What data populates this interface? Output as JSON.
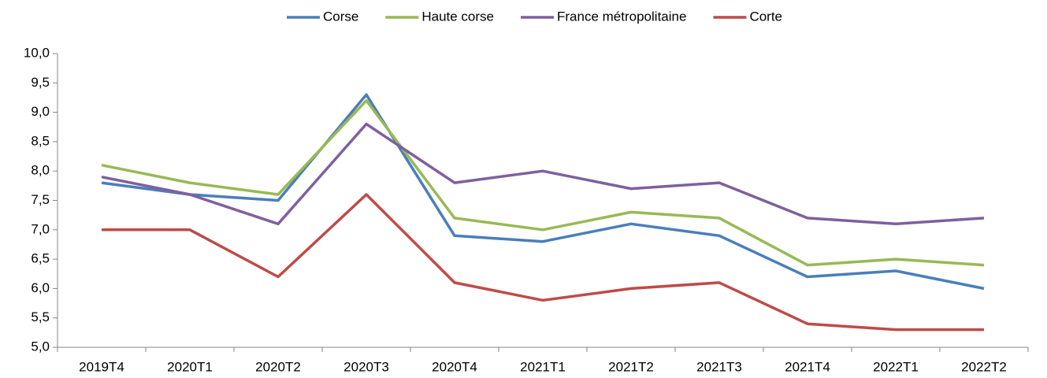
{
  "chart_data": {
    "type": "line",
    "categories": [
      "2019T4",
      "2020T1",
      "2020T2",
      "2020T3",
      "2020T4",
      "2021T1",
      "2021T2",
      "2021T3",
      "2021T4",
      "2022T1",
      "2022T2"
    ],
    "series": [
      {
        "name": "Corse",
        "color": "#4a7ebb",
        "values": [
          7.8,
          7.6,
          7.5,
          9.3,
          6.9,
          6.8,
          7.1,
          6.9,
          6.2,
          6.3,
          6.0
        ]
      },
      {
        "name": "Haute corse",
        "color": "#98b954",
        "values": [
          8.1,
          7.8,
          7.6,
          9.2,
          7.2,
          7.0,
          7.3,
          7.2,
          6.4,
          6.5,
          6.4
        ]
      },
      {
        "name": "France métropolitaine",
        "color": "#7d60a0",
        "values": [
          7.9,
          7.6,
          7.1,
          8.8,
          7.8,
          8.0,
          7.7,
          7.8,
          7.2,
          7.1,
          7.2
        ]
      },
      {
        "name": "Corte",
        "color": "#be4b48",
        "values": [
          7.0,
          7.0,
          6.2,
          7.6,
          6.1,
          5.8,
          6.0,
          6.1,
          5.4,
          5.3,
          5.3
        ]
      }
    ],
    "ylim": [
      5,
      10
    ],
    "yticks": [
      {
        "value": 5,
        "label": "5,0"
      },
      {
        "value": 5.5,
        "label": "5,5"
      },
      {
        "value": 6,
        "label": "6,0"
      },
      {
        "value": 6.5,
        "label": "6,5"
      },
      {
        "value": 7,
        "label": "7,0"
      },
      {
        "value": 7.5,
        "label": "7,5"
      },
      {
        "value": 8,
        "label": "8,0"
      },
      {
        "value": 8.5,
        "label": "8,5"
      },
      {
        "value": 9,
        "label": "9,0"
      },
      {
        "value": 9.5,
        "label": "9,5"
      },
      {
        "value": 10,
        "label": "10,0"
      }
    ],
    "grid": false,
    "legend": "top"
  }
}
